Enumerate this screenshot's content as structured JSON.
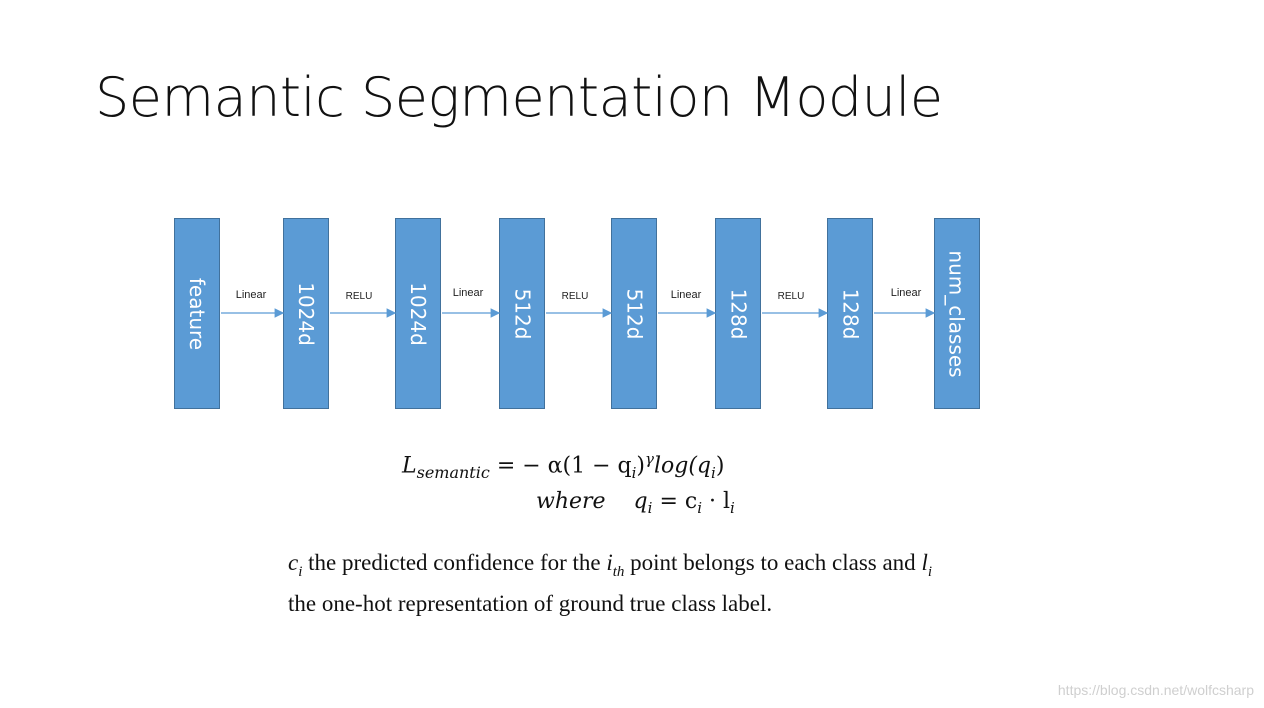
{
  "title": "Semantic Segmentation Module",
  "blocks": [
    "feature",
    "1024d",
    "1024d",
    "512d",
    "512d",
    "128d",
    "128d",
    "num_classes"
  ],
  "edges": [
    "Linear",
    "RELU",
    "Linear",
    "RELU",
    "Linear",
    "RELU",
    "Linear"
  ],
  "formula": {
    "line1_lhs": "L",
    "line1_sub": "semantic",
    "line1_rhs": "= − α(1 − q",
    "line1_gamma": "γ",
    "line1_log": "log(q",
    "line2_where": "where",
    "line2_eq": "q",
    "line2_rhs": "= c",
    "line2_dot": "· l"
  },
  "description": {
    "c_var": "c",
    "part1": " the predicted confidence for the ",
    "i_var": "i",
    "th_sub": "th",
    "part2": " point belongs to each class and ",
    "l_var": "l",
    "part3": " the one-hot representation of ground true class label."
  },
  "watermark": "https://blog.csdn.net/wolfcsharp",
  "colors": {
    "block_fill": "#5b9bd5",
    "block_border": "#41719c",
    "arrow": "#5b9bd5"
  }
}
